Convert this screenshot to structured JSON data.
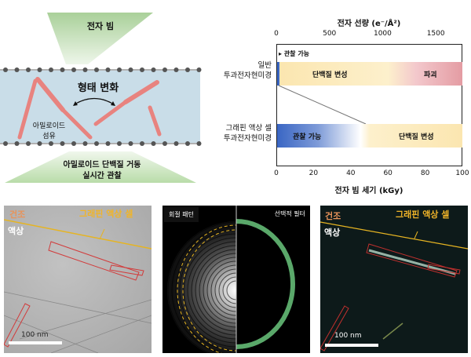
{
  "diagram": {
    "beam_label": "전자 빔",
    "change_label": "형태 변화",
    "fiber_label_line1": "아밀로이드",
    "fiber_label_line2": "섬유",
    "observe_line1": "아밀로이드 단백질 거동",
    "observe_line2": "실시간 관찰",
    "beam_color": "#b7d8a8",
    "liquid_color": "#c6dbe6",
    "fiber_color": "#e8837f"
  },
  "chart": {
    "top_axis_title": "전자 선량 (e⁻/Å²)",
    "top_ticks": [
      "0",
      "500",
      "1000",
      "1500"
    ],
    "bottom_axis_title": "전자 빔 세기 (kGy)",
    "bottom_ticks": [
      "0",
      "20",
      "40",
      "60",
      "80",
      "100"
    ],
    "rows": [
      {
        "label_line1": "일반",
        "label_line2": "투과전자현미경",
        "observable_note": "관찰 가능",
        "segments": [
          "단백질 변성",
          "파괴"
        ]
      },
      {
        "label_line1": "그래핀 액상 셀",
        "label_line2": "투과전자현미경",
        "segments": [
          "관찰 가능",
          "단백질 변성"
        ]
      }
    ],
    "colors": {
      "observable": "#3a66c4",
      "denature": "#fbe6b0",
      "destroy": "#e49ca3"
    }
  },
  "panels": {
    "left": {
      "dry": "건조",
      "liquid": "액상",
      "cell": "그래핀 액상 셀",
      "scale": "100 nm"
    },
    "middle": {
      "diffraction": "회절 패턴",
      "filter": "선택적 필터"
    },
    "right": {
      "dry": "건조",
      "liquid": "액상",
      "cell": "그래핀 액상 셀",
      "scale": "100 nm"
    }
  }
}
